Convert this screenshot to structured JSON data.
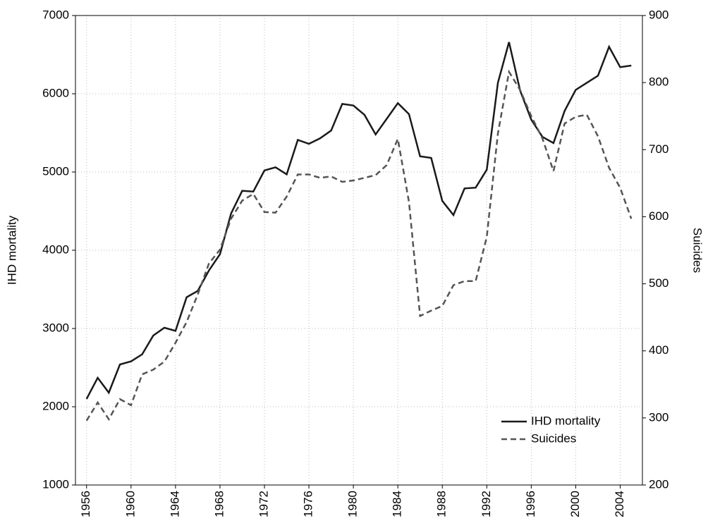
{
  "chart_data": {
    "type": "line",
    "ylabel": "IHD mortality",
    "y2label": "Suicides",
    "x": [
      1956,
      1957,
      1958,
      1959,
      1960,
      1961,
      1962,
      1963,
      1964,
      1965,
      1966,
      1967,
      1968,
      1969,
      1970,
      1971,
      1972,
      1973,
      1974,
      1975,
      1976,
      1977,
      1978,
      1979,
      1980,
      1981,
      1982,
      1983,
      1984,
      1985,
      1986,
      1987,
      1988,
      1989,
      1990,
      1991,
      1992,
      1993,
      1994,
      1995,
      1996,
      1997,
      1998,
      1999,
      2000,
      2001,
      2002,
      2003,
      2004,
      2005
    ],
    "series": [
      {
        "name": "IHD mortality",
        "color": "#1a1a1a",
        "dash": "solid",
        "values": [
          2100,
          2370,
          2180,
          2540,
          2580,
          2670,
          2910,
          3010,
          2970,
          3400,
          3480,
          3740,
          3950,
          4470,
          4760,
          4750,
          5020,
          5060,
          4970,
          5410,
          5360,
          5430,
          5530,
          5870,
          5850,
          5730,
          5480,
          5680,
          5880,
          5740,
          5200,
          5180,
          4630,
          4450,
          4790,
          4800,
          5030,
          6140,
          6660,
          6040,
          5670,
          5450,
          5370,
          5780,
          6050,
          6140,
          6230,
          6600,
          6340,
          6360
        ]
      },
      {
        "name": "Suicides",
        "color": "#555555",
        "dash": "dashed",
        "axis": "y2",
        "values": [
          296,
          323,
          298,
          328,
          319,
          365,
          372,
          384,
          412,
          443,
          484,
          530,
          551,
          597,
          624,
          634,
          607,
          606,
          630,
          663,
          663,
          658,
          660,
          652,
          654,
          658,
          662,
          677,
          716,
          622,
          452,
          460,
          467,
          498,
          504,
          504,
          570,
          724,
          816,
          789,
          750,
          717,
          668,
          739,
          749,
          752,
          720,
          673,
          643,
          597
        ]
      }
    ],
    "xlim": [
      1955,
      2006
    ],
    "xticks": [
      1956,
      1960,
      1964,
      1968,
      1972,
      1976,
      1980,
      1984,
      1988,
      1992,
      1996,
      2000,
      2004
    ],
    "ylim": [
      1000,
      7000
    ],
    "yticks": [
      1000,
      2000,
      3000,
      4000,
      5000,
      6000,
      7000
    ],
    "y2lim": [
      200,
      900
    ],
    "y2ticks": [
      200,
      300,
      400,
      500,
      600,
      700,
      800,
      900
    ],
    "grid": true,
    "legend": "lower right"
  }
}
